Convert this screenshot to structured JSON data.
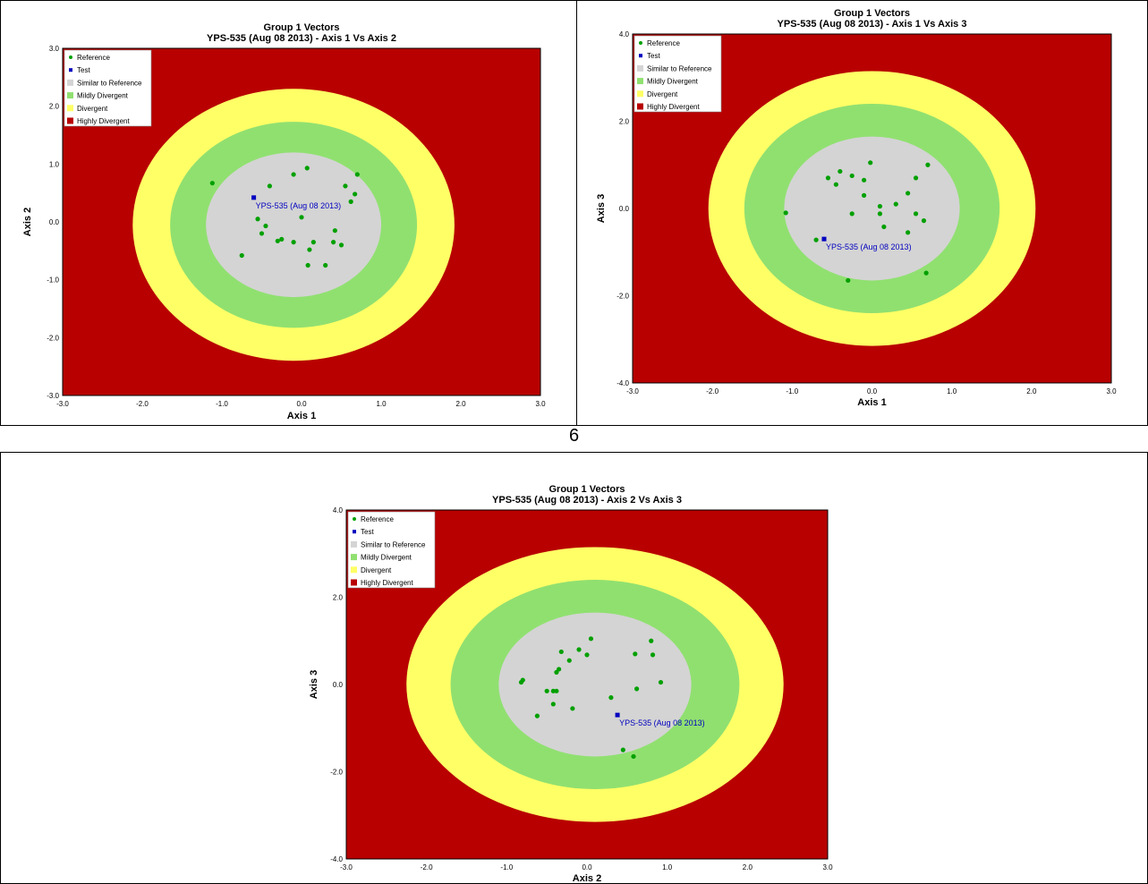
{
  "page_number": "6",
  "legend": {
    "reference": "Reference",
    "test": "Test",
    "similar": "Similar to Reference",
    "mildly": "Mildly Divergent",
    "divergent": "Divergent",
    "highly": "Highly Divergent"
  },
  "colors": {
    "highly": "#b80000",
    "divergent": "#ffff66",
    "mildly": "#90e070",
    "similar": "#d4d4d4",
    "reference_point": "#00a000",
    "test_point": "#0000c0",
    "test_label": "#0000c0"
  },
  "chart_data": [
    {
      "type": "scatter",
      "title": "Group 1 Vectors",
      "subtitle": "YPS-535 (Aug 08 2013) - Axis 1 Vs Axis 2",
      "xlabel": "Axis 1",
      "ylabel": "Axis 2",
      "xlim": [
        -3,
        3
      ],
      "ylim": [
        -3,
        3
      ],
      "xticks": [
        "-3.0",
        "-2.0",
        "-1.0",
        "0.0",
        "1.0",
        "2.0",
        "3.0"
      ],
      "yticks": [
        "-3.0",
        "-2.0",
        "-1.0",
        "0.0",
        "1.0",
        "2.0",
        "3.0"
      ],
      "regions": [
        {
          "name": "Divergent",
          "cx": -0.1,
          "cy": -0.05,
          "rx": 2.02,
          "ry": 2.35
        },
        {
          "name": "Mildly Divergent",
          "cx": -0.1,
          "cy": -0.05,
          "rx": 1.55,
          "ry": 1.78
        },
        {
          "name": "Similar to Reference",
          "cx": -0.1,
          "cy": -0.05,
          "rx": 1.1,
          "ry": 1.25
        }
      ],
      "reference": [
        [
          -1.12,
          0.67
        ],
        [
          -0.4,
          0.62
        ],
        [
          -0.1,
          0.82
        ],
        [
          0.07,
          0.93
        ],
        [
          0.55,
          0.62
        ],
        [
          0.7,
          0.82
        ],
        [
          0.67,
          0.48
        ],
        [
          0.62,
          0.35
        ],
        [
          -0.55,
          0.05
        ],
        [
          -0.45,
          -0.07
        ],
        [
          -0.5,
          -0.2
        ],
        [
          0.0,
          0.08
        ],
        [
          -0.3,
          -0.33
        ],
        [
          -0.25,
          -0.3
        ],
        [
          -0.1,
          -0.35
        ],
        [
          0.15,
          -0.35
        ],
        [
          0.1,
          -0.48
        ],
        [
          0.4,
          -0.35
        ],
        [
          0.42,
          -0.15
        ],
        [
          0.5,
          -0.4
        ],
        [
          -0.75,
          -0.58
        ],
        [
          0.08,
          -0.75
        ],
        [
          0.3,
          -0.75
        ]
      ],
      "test": {
        "x": -0.6,
        "y": 0.42,
        "label": "YPS-535 (Aug 08 2013)"
      }
    },
    {
      "type": "scatter",
      "title": "Group 1 Vectors",
      "subtitle": "YPS-535 (Aug 08 2013) - Axis 1 Vs Axis 3",
      "xlabel": "Axis 1",
      "ylabel": "Axis 3",
      "xlim": [
        -3,
        3
      ],
      "ylim": [
        -4,
        4
      ],
      "xticks": [
        "-3.0",
        "-2.0",
        "-1.0",
        "0.0",
        "1.0",
        "2.0",
        "3.0"
      ],
      "yticks": [
        "-4.0",
        "-2.0",
        "0.0",
        "2.0",
        "4.0"
      ],
      "ytick_values": [
        -4,
        -2,
        0,
        2,
        4
      ],
      "regions": [
        {
          "name": "Divergent",
          "cx": 0.0,
          "cy": 0.0,
          "rx": 2.05,
          "ry": 3.15
        },
        {
          "name": "Mildly Divergent",
          "cx": 0.0,
          "cy": 0.0,
          "rx": 1.6,
          "ry": 2.4
        },
        {
          "name": "Similar to Reference",
          "cx": 0.0,
          "cy": 0.0,
          "rx": 1.1,
          "ry": 1.65
        }
      ],
      "reference": [
        [
          -1.08,
          -0.1
        ],
        [
          -0.55,
          0.7
        ],
        [
          -0.45,
          0.55
        ],
        [
          -0.4,
          0.85
        ],
        [
          -0.25,
          0.75
        ],
        [
          -0.1,
          0.65
        ],
        [
          -0.02,
          1.05
        ],
        [
          0.7,
          1.0
        ],
        [
          0.55,
          0.7
        ],
        [
          0.45,
          0.35
        ],
        [
          -0.1,
          0.3
        ],
        [
          0.1,
          0.05
        ],
        [
          0.1,
          -0.12
        ],
        [
          0.3,
          0.1
        ],
        [
          -0.25,
          -0.12
        ],
        [
          0.15,
          -0.42
        ],
        [
          0.55,
          -0.12
        ],
        [
          0.65,
          -0.28
        ],
        [
          0.45,
          -0.55
        ],
        [
          -0.7,
          -0.72
        ],
        [
          -0.3,
          -1.65
        ],
        [
          0.68,
          -1.48
        ]
      ],
      "test": {
        "x": -0.6,
        "y": -0.7,
        "label": "YPS-535 (Aug 08 2013)"
      }
    },
    {
      "type": "scatter",
      "title": "Group 1 Vectors",
      "subtitle": "YPS-535 (Aug 08 2013) - Axis 2 Vs Axis 3",
      "xlabel": "Axis 2",
      "ylabel": "Axis 3",
      "xlim": [
        -3,
        3
      ],
      "ylim": [
        -4,
        4
      ],
      "xticks": [
        "-3.0",
        "-2.0",
        "-1.0",
        "0.0",
        "1.0",
        "2.0",
        "3.0"
      ],
      "yticks": [
        "-4.0",
        "-2.0",
        "0.0",
        "2.0",
        "4.0"
      ],
      "ytick_values": [
        -4,
        -2,
        0,
        2,
        4
      ],
      "regions": [
        {
          "name": "Divergent",
          "cx": 0.1,
          "cy": 0.0,
          "rx": 2.35,
          "ry": 3.15
        },
        {
          "name": "Mildly Divergent",
          "cx": 0.1,
          "cy": 0.0,
          "rx": 1.8,
          "ry": 2.4
        },
        {
          "name": "Similar to Reference",
          "cx": 0.1,
          "cy": 0.0,
          "rx": 1.2,
          "ry": 1.65
        }
      ],
      "reference": [
        [
          -0.82,
          0.05
        ],
        [
          -0.8,
          0.1
        ],
        [
          -0.38,
          0.28
        ],
        [
          -0.35,
          0.35
        ],
        [
          -0.32,
          0.75
        ],
        [
          -0.22,
          0.55
        ],
        [
          -0.1,
          0.8
        ],
        [
          0.0,
          0.68
        ],
        [
          0.05,
          1.05
        ],
        [
          0.6,
          0.7
        ],
        [
          0.8,
          1.0
        ],
        [
          0.82,
          0.68
        ],
        [
          0.92,
          0.05
        ],
        [
          0.62,
          -0.1
        ],
        [
          0.3,
          -0.3
        ],
        [
          -0.5,
          -0.15
        ],
        [
          -0.42,
          -0.15
        ],
        [
          -0.38,
          -0.15
        ],
        [
          -0.18,
          -0.55
        ],
        [
          -0.42,
          -0.45
        ],
        [
          -0.62,
          -0.72
        ],
        [
          0.45,
          -1.5
        ],
        [
          0.58,
          -1.65
        ]
      ],
      "test": {
        "x": 0.38,
        "y": -0.7,
        "label": "YPS-535 (Aug 08 2013)"
      }
    }
  ]
}
